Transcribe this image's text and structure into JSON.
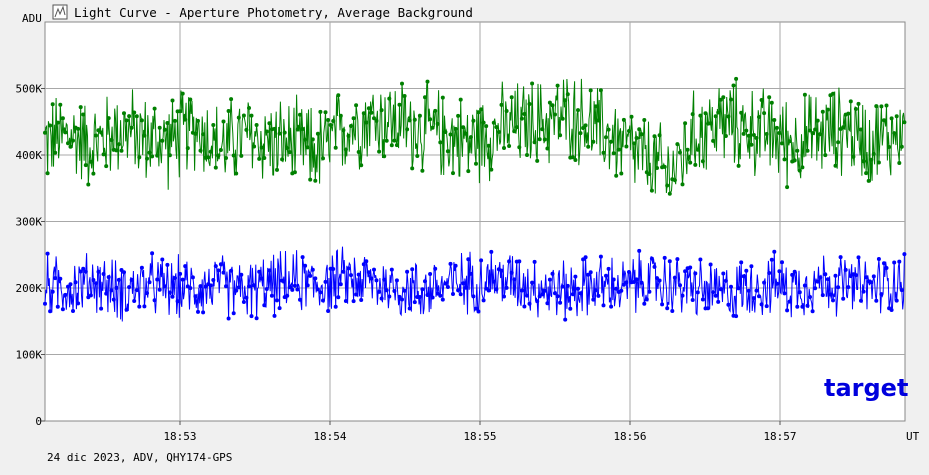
{
  "window": {
    "title": "Light Curve - Aperture Photometry, Average Background",
    "footer": "24 dic 2023, ADV, QHY174-GPS"
  },
  "chart_data": {
    "type": "line",
    "title": "Light Curve - Aperture Photometry, Average Background",
    "ylabel": "ADU",
    "xlabel": "UT",
    "ylim": [
      0,
      600000
    ],
    "y_ticks": [
      {
        "value": 0,
        "label": "0"
      },
      {
        "value": 100000,
        "label": "100K"
      },
      {
        "value": 200000,
        "label": "200K"
      },
      {
        "value": 300000,
        "label": "300K"
      },
      {
        "value": 400000,
        "label": "400K"
      },
      {
        "value": 500000,
        "label": "500K"
      }
    ],
    "xlim": [
      "18:52:06",
      "18:57:50"
    ],
    "x_ticks": [
      {
        "value": "18:53",
        "label": "18:53"
      },
      {
        "value": "18:54",
        "label": "18:54"
      },
      {
        "value": "18:55",
        "label": "18:55"
      },
      {
        "value": "18:56",
        "label": "18:56"
      },
      {
        "value": "18:57",
        "label": "18:57"
      }
    ],
    "grid": true,
    "annotation": "target",
    "series": [
      {
        "color": "#008000",
        "x": [
          "18:52:06",
          "18:52:16",
          "18:52:26",
          "18:52:36",
          "18:52:46",
          "18:52:56",
          "18:53:06",
          "18:53:16",
          "18:53:26",
          "18:53:36",
          "18:53:46",
          "18:53:56",
          "18:54:06",
          "18:54:16",
          "18:54:26",
          "18:54:36",
          "18:54:46",
          "18:54:56",
          "18:55:06",
          "18:55:16",
          "18:55:26",
          "18:55:36",
          "18:55:46",
          "18:55:56",
          "18:56:06",
          "18:56:16",
          "18:56:26",
          "18:56:36",
          "18:56:46",
          "18:56:56",
          "18:57:06",
          "18:57:16",
          "18:57:26",
          "18:57:36",
          "18:57:46",
          "18:57:50"
        ],
        "values": [
          420000,
          430000,
          415000,
          440000,
          425000,
          420000,
          445000,
          410000,
          430000,
          420000,
          415000,
          405000,
          440000,
          455000,
          450000,
          440000,
          430000,
          420000,
          435000,
          445000,
          450000,
          460000,
          440000,
          420000,
          395000,
          370000,
          430000,
          450000,
          440000,
          430000,
          420000,
          430000,
          440000,
          420000,
          430000,
          435000
        ],
        "noise_amplitude": 80000
      },
      {
        "color": "#0000ff",
        "x": [
          "18:52:06",
          "18:52:16",
          "18:52:26",
          "18:52:36",
          "18:52:46",
          "18:52:56",
          "18:53:06",
          "18:53:16",
          "18:53:26",
          "18:53:36",
          "18:53:46",
          "18:53:56",
          "18:54:06",
          "18:54:16",
          "18:54:26",
          "18:54:36",
          "18:54:46",
          "18:54:56",
          "18:55:06",
          "18:55:16",
          "18:55:26",
          "18:55:36",
          "18:55:46",
          "18:55:56",
          "18:56:06",
          "18:56:16",
          "18:56:26",
          "18:56:36",
          "18:56:46",
          "18:56:56",
          "18:57:06",
          "18:57:16",
          "18:57:26",
          "18:57:36",
          "18:57:46",
          "18:57:50"
        ],
        "values": [
          205000,
          200000,
          210000,
          195000,
          205000,
          200000,
          200000,
          205000,
          195000,
          205000,
          210000,
          205000,
          215000,
          210000,
          200000,
          195000,
          205000,
          210000,
          215000,
          210000,
          200000,
          195000,
          205000,
          200000,
          210000,
          205000,
          200000,
          190000,
          200000,
          205000,
          200000,
          210000,
          205000,
          200000,
          210000,
          215000
        ],
        "noise_amplitude": 55000
      }
    ]
  }
}
